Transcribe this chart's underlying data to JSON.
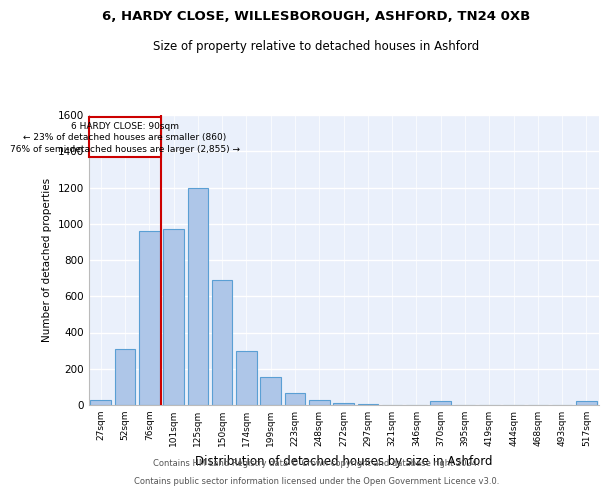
{
  "title1": "6, HARDY CLOSE, WILLESBOROUGH, ASHFORD, TN24 0XB",
  "title2": "Size of property relative to detached houses in Ashford",
  "xlabel": "Distribution of detached houses by size in Ashford",
  "ylabel": "Number of detached properties",
  "categories": [
    "27sqm",
    "52sqm",
    "76sqm",
    "101sqm",
    "125sqm",
    "150sqm",
    "174sqm",
    "199sqm",
    "223sqm",
    "248sqm",
    "272sqm",
    "297sqm",
    "321sqm",
    "346sqm",
    "370sqm",
    "395sqm",
    "419sqm",
    "444sqm",
    "468sqm",
    "493sqm",
    "517sqm"
  ],
  "values": [
    30,
    310,
    960,
    970,
    1200,
    690,
    300,
    155,
    65,
    25,
    10,
    5,
    0,
    0,
    20,
    0,
    0,
    0,
    0,
    0,
    20
  ],
  "bar_color": "#aec6e8",
  "bar_edge_color": "#5a9fd4",
  "bg_color": "#eaf0fb",
  "grid_color": "#ffffff",
  "annotation_box_edgecolor": "#cc0000",
  "marker_line_color": "#cc0000",
  "annotation_text_line1": "6 HARDY CLOSE: 90sqm",
  "annotation_text_line2": "← 23% of detached houses are smaller (860)",
  "annotation_text_line3": "76% of semi-detached houses are larger (2,855) →",
  "footer1": "Contains HM Land Registry data © Crown copyright and database right 2024.",
  "footer2": "Contains public sector information licensed under the Open Government Licence v3.0.",
  "ylim": [
    0,
    1600
  ],
  "yticks": [
    0,
    200,
    400,
    600,
    800,
    1000,
    1200,
    1400,
    1600
  ]
}
